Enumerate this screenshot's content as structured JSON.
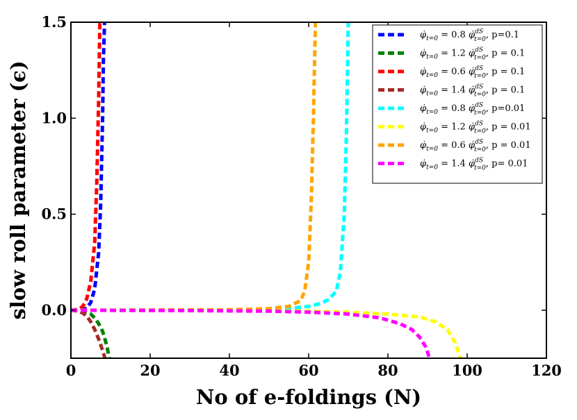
{
  "chart_data": {
    "type": "line",
    "title": "",
    "xlabel": "No of e-foldings (N)",
    "ylabel": "slow roll parameter (ϵ)",
    "xlim": [
      0,
      120
    ],
    "ylim": [
      -0.25,
      1.5
    ],
    "xticks": [
      0,
      20,
      40,
      60,
      80,
      100,
      120
    ],
    "yticks": [
      0.0,
      0.5,
      1.0,
      1.5
    ],
    "xtick_labels": [
      "0",
      "20",
      "40",
      "60",
      "80",
      "100",
      "120"
    ],
    "ytick_labels": [
      "0.0",
      "0.5",
      "1.0",
      "1.5"
    ],
    "legend_position": "top-right",
    "series": [
      {
        "name": "φ̇ t=0 = 0.8 φ̇ dS t=0, p=0.1",
        "color": "#0000ff",
        "x": [
          0,
          2,
          4,
          5,
          6,
          7,
          7.5,
          8,
          8.2,
          8.5
        ],
        "y": [
          0,
          0,
          0.01,
          0.04,
          0.11,
          0.3,
          0.55,
          1.0,
          1.3,
          1.5
        ]
      },
      {
        "name": "φ̇ t=0 = 1.2 φ̇ dS t=0, p = 0.1",
        "color": "#008000",
        "x": [
          0,
          3,
          5,
          6,
          7,
          8,
          9,
          9.7
        ],
        "y": [
          0,
          -0.005,
          -0.02,
          -0.04,
          -0.07,
          -0.11,
          -0.18,
          -0.25
        ]
      },
      {
        "name": "φ̇ t=0 = 0.6 φ̇ dS t=0, p = 0.1",
        "color": "#ff0000",
        "x": [
          0,
          2,
          3,
          4,
          5,
          6,
          6.5,
          7,
          7.3
        ],
        "y": [
          0,
          0.005,
          0.02,
          0.06,
          0.15,
          0.35,
          0.65,
          1.1,
          1.5
        ]
      },
      {
        "name": "φ̇ t=0 = 1.4 φ̇ dS t=0, p = 0.1",
        "color": "#a52a2a",
        "x": [
          0,
          2,
          3,
          4,
          5,
          6,
          7,
          8,
          8.6
        ],
        "y": [
          0,
          -0.005,
          -0.015,
          -0.03,
          -0.06,
          -0.1,
          -0.15,
          -0.21,
          -0.25
        ]
      },
      {
        "name": "φ̇ t=0 = 0.8 φ̇ dS t=0, p=0.01",
        "color": "#00ffff",
        "x": [
          0,
          40,
          50,
          55,
          60,
          63,
          65,
          67,
          68,
          69,
          69.5,
          70
        ],
        "y": [
          0,
          0.001,
          0.004,
          0.008,
          0.02,
          0.035,
          0.055,
          0.1,
          0.2,
          0.5,
          0.9,
          1.5
        ]
      },
      {
        "name": "φ̇ t=0 = 1.2 φ̇ dS t=0, p = 0.01",
        "color": "#ffff00",
        "x": [
          0,
          40,
          60,
          70,
          80,
          88,
          92,
          95,
          97,
          98.3
        ],
        "y": [
          0,
          -0.001,
          -0.005,
          -0.01,
          -0.02,
          -0.035,
          -0.06,
          -0.1,
          -0.17,
          -0.25
        ]
      },
      {
        "name": "φ̇ t=0 = 0.6 φ̇ dS t=0, p = 0.01",
        "color": "#ffa500",
        "x": [
          0,
          40,
          50,
          55,
          58,
          59,
          60,
          60.7,
          61.2,
          61.7
        ],
        "y": [
          0,
          0.002,
          0.008,
          0.02,
          0.05,
          0.1,
          0.25,
          0.6,
          1.0,
          1.5
        ]
      },
      {
        "name": "φ̇ t=0 = 1.4 φ̇ dS t=0, p= 0.01",
        "color": "#ff00ff",
        "x": [
          0,
          30,
          50,
          60,
          70,
          78,
          83,
          86,
          88,
          89.5,
          90.5
        ],
        "y": [
          0,
          -0.002,
          -0.005,
          -0.01,
          -0.02,
          -0.04,
          -0.07,
          -0.1,
          -0.14,
          -0.19,
          -0.25
        ]
      }
    ],
    "legend": [
      {
        "base": "φ̇",
        "sub": "t=0",
        "mid": " = 0.8 ",
        "sup2": "dS",
        "sub2": "t=0",
        "tail": ", p=0.1"
      },
      {
        "base": "φ̇",
        "sub": "t=0",
        "mid": " = 1.2 ",
        "sup2": "dS",
        "sub2": "t=0",
        "tail": ", p = 0.1"
      },
      {
        "base": "φ̇",
        "sub": "t=0",
        "mid": " = 0.6 ",
        "sup2": "dS",
        "sub2": "t=0",
        "tail": ", p = 0.1"
      },
      {
        "base": "φ̇",
        "sub": "t=0",
        "mid": " = 1.4 ",
        "sup2": "dS",
        "sub2": "t=0",
        "tail": ", p = 0.1"
      },
      {
        "base": "φ̇",
        "sub": "t=0",
        "mid": " = 0.8 ",
        "sup2": "dS",
        "sub2": "t=0",
        "tail": ", p=0.01"
      },
      {
        "base": "φ̇",
        "sub": "t=0",
        "mid": " = 1.2 ",
        "sup2": "dS",
        "sub2": "t=0",
        "tail": ", p = 0.01"
      },
      {
        "base": "φ̇",
        "sub": "t=0",
        "mid": " = 0.6 ",
        "sup2": "dS",
        "sub2": "t=0",
        "tail": ", p = 0.01"
      },
      {
        "base": "φ̇",
        "sub": "t=0",
        "mid": " = 1.4 ",
        "sup2": "dS",
        "sub2": "t=0",
        "tail": ", p= 0.01"
      }
    ]
  }
}
